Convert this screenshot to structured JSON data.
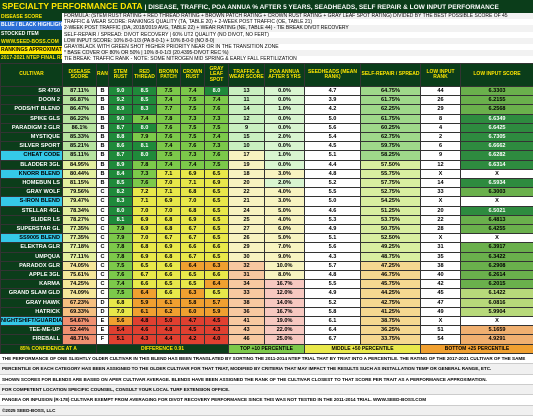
{
  "header": {
    "title": "SPECIALTY PERFORMANCE DATA",
    "subtitle": "| DISEASE, TRAFFIC, POA ANNUA % AFTER 5 YEARS, SEADHEADS, SELF REPAIR & LOW INPUT PERFORMANCE"
  },
  "legend": {
    "left": [
      "DISEASE SCORE",
      "BLUE / BLACK HIGHLIGHT",
      "STOCKED ITEM",
      "WWW.SEED-BOSS.COM",
      "RANKINGS APPROXIMATE",
      "2017-2021 NTEP FINAL REPORT"
    ],
    "lines": [
      "FORMULA: (STEM RUST RATING + RED THREAD RATING + BROWN PATCH RATING + CROWN RUST RATING + GRAY LEAF SPOT RATING) DIVIDED BY THE BEST POSSIBLE SCORE OF 45",
      "TRAFFIC & WEAR SCORE: RANKINGS QUALITY (TA, TABLE 20) + 2-WEEK POST TRAFFIC (OE, TABLE 21)",
      "2-WEEK POST TRAFFIC (DA, 2018/2019 AVG, TABLE 22) + WEAR RATING (NE, TABLE 44) - TIE BREAK DIVOT RECOVERY",
      "SELF-REPAIR / SPREAD: DIVOT RECOVERY | 60% UT2 QUALITY (NO DIVOT, NO FERT)",
      "LOW INPUT SCORE: 10% 8-0-1/3 (PA 8-0-1) + 10% 8-0-0 (NO 8-0)",
      "GRAY/BLACK WITH GREEN SHOT HIGHER PRIORITY NEAR OR IN THE TRANSITION ZONE",
      "* BASE COVER OF 80% OR 50% | 10% 8-0-1/3 (20.4395-DIVOT REC %)",
      "TIE BREAK: TRAFFIC RANK - NOTE: SOME NITROGEN MID SPRING & EARLY FALL FERTILIZATION"
    ],
    "percentiles": [
      "85% CONFIDENCE AT A",
      "DIFFERENCE 0.91",
      "TOP +10 PERCENTILE",
      "MIDDLE +50 PERCENTILE",
      "BOTTOM +25 PERCENTILE"
    ]
  },
  "table": {
    "columns": [
      "CULTIVAR",
      "DISEASE SCORE",
      "RANK",
      "STEM RUST",
      "RED THREAD",
      "BROWN PATCH",
      "CROWN RUST",
      "GRAY LEAF SPOT",
      "TRAFFIC & WEAR SCORE",
      "POA ANNUA AFTER 5 YRS",
      "SEEDHEADS (MEAN RANK)",
      "SELF-REPAIR / SPREAD",
      "LOW INPUT RANK",
      "LOW INPUT SCORE"
    ],
    "highlight_rows": [
      7,
      9,
      12,
      16,
      25
    ],
    "rows": [
      [
        "SR 4750",
        "87.11%",
        "B",
        "9.0",
        "8.5",
        "7.5",
        "7.4",
        "8.0",
        "13",
        "0.0%",
        "4.7",
        "64.75%",
        "44",
        "6.3303"
      ],
      [
        "DOON 2",
        "86.87%",
        "B",
        "9.2",
        "8.5",
        "7.4",
        "7.5",
        "7.4",
        "11",
        "0.0%",
        "3.9",
        "61.75%",
        "26",
        "6.2155"
      ],
      [
        "PODS/HT BLEND",
        "86.47%",
        "B",
        "8.9",
        "8.3",
        "7.7",
        "7.5",
        "7.6",
        "14",
        "1.0%",
        "4.2",
        "62.25%",
        "29",
        "6.2568"
      ],
      [
        "SPIKE GLS",
        "86.22%",
        "B",
        "9.0",
        "7.4",
        "7.8",
        "7.3",
        "7.3",
        "12",
        "0.0%",
        "5.0",
        "61.75%",
        "8",
        "6.6349"
      ],
      [
        "PARADIGM 2 GLR",
        "86.1%",
        "B",
        "8.7",
        "8.0",
        "7.6",
        "7.5",
        "7.5",
        "9",
        "0.0%",
        "5.6",
        "60.25%",
        "4",
        "6.6425"
      ],
      [
        "MYSTIQUE",
        "85.33%",
        "B",
        "8.8",
        "7.9",
        "7.6",
        "7.5",
        "7.4",
        "15",
        "2.0%",
        "5.4",
        "62.75%",
        "2",
        "6.7305"
      ],
      [
        "SILVER SPORT",
        "85.21%",
        "B",
        "8.6",
        "8.1",
        "7.4",
        "7.6",
        "7.3",
        "10",
        "0.0%",
        "4.5",
        "59.75%",
        "6",
        "6.6662"
      ],
      [
        "CHEAT CODE",
        "85.11%",
        "B",
        "8.7",
        "8.0",
        "7.5",
        "7.3",
        "7.6",
        "17",
        "1.0%",
        "5.1",
        "58.25%",
        "9",
        "6.6282"
      ],
      [
        "BLADDER 3GL",
        "84.95%",
        "B",
        "8.9",
        "7.8",
        "7.4",
        "7.4",
        "7.5",
        "19",
        "0.0%",
        "4.4",
        "57.50%",
        "12",
        "6.6314"
      ],
      [
        "KNORR BLEND",
        "80.44%",
        "B",
        "8.4",
        "7.3",
        "7.1",
        "6.9",
        "6.5",
        "18",
        "3.0%",
        "4.8",
        "55.75%",
        "X",
        "X"
      ],
      [
        "HOMEBUN LS",
        "81.15%",
        "B",
        "8.5",
        "7.6",
        "7.0",
        "7.1",
        "6.9",
        "20",
        "2.0%",
        "5.2",
        "57.75%",
        "14",
        "6.5934"
      ],
      [
        "GRAY WOLF",
        "79.56%",
        "C",
        "8.2",
        "7.2",
        "7.1",
        "6.8",
        "6.5",
        "22",
        "4.0%",
        "5.5",
        "52.75%",
        "33",
        "6.3003"
      ],
      [
        "S-IRON BLEND",
        "79.47%",
        "C",
        "8.3",
        "7.1",
        "6.9",
        "7.0",
        "6.5",
        "21",
        "3.0%",
        "5.0",
        "54.25%",
        "X",
        "X"
      ],
      [
        "STELLAR 4GL",
        "78.34%",
        "C",
        "8.0",
        "7.0",
        "7.0",
        "6.8",
        "6.5",
        "24",
        "5.0%",
        "4.6",
        "51.25%",
        "20",
        "6.5021"
      ],
      [
        "SLIDER LS",
        "78.27%",
        "C",
        "8.1",
        "6.9",
        "6.8",
        "6.9",
        "6.5",
        "25",
        "4.0%",
        "5.3",
        "53.75%",
        "22",
        "6.4813"
      ],
      [
        "SUPERSTAR GL",
        "77.35%",
        "C",
        "7.9",
        "6.9",
        "6.8",
        "6.7",
        "6.5",
        "27",
        "6.0%",
        "4.9",
        "50.75%",
        "28",
        "6.4255"
      ],
      [
        "SS9005 BLEND",
        "77.35%",
        "C",
        "7.9",
        "7.0",
        "6.7",
        "6.7",
        "6.5",
        "26",
        "5.0%",
        "5.1",
        "52.50%",
        "X",
        "X"
      ],
      [
        "ELEKTRA GLR",
        "77.18%",
        "C",
        "7.8",
        "6.8",
        "6.9",
        "6.6",
        "6.6",
        "29",
        "7.0%",
        "5.6",
        "49.25%",
        "31",
        "6.3917"
      ],
      [
        "UMPQUA",
        "77.11%",
        "C",
        "7.8",
        "6.9",
        "6.8",
        "6.7",
        "6.5",
        "30",
        "9.0%",
        "4.3",
        "48.75%",
        "35",
        "6.3422"
      ],
      [
        "PARADOX GLR",
        "74.05%",
        "C",
        "7.5",
        "6.5",
        "6.6",
        "6.4",
        "6.3",
        "32",
        "10.0%",
        "5.7",
        "47.25%",
        "38",
        "6.2908"
      ],
      [
        "APPLE 3GL",
        "75.61%",
        "C",
        "7.6",
        "6.7",
        "6.6",
        "6.5",
        "6.6",
        "31",
        "8.0%",
        "4.8",
        "46.75%",
        "40",
        "6.2614"
      ],
      [
        "KARMA",
        "74.25%",
        "C",
        "7.4",
        "6.6",
        "6.5",
        "6.5",
        "6.4",
        "34",
        "16.7%",
        "5.5",
        "45.75%",
        "42",
        "6.2015"
      ],
      [
        "GRAND SLAM GLD",
        "74.09%",
        "C",
        "7.5",
        "6.4",
        "6.6",
        "6.3",
        "6.5",
        "33",
        "12.0%",
        "4.9",
        "44.25%",
        "45",
        "6.1422"
      ],
      [
        "GRAY HAWK",
        "67.23%",
        "D",
        "6.8",
        "5.9",
        "6.1",
        "5.8",
        "5.7",
        "38",
        "14.0%",
        "5.2",
        "42.75%",
        "47",
        "6.0816"
      ],
      [
        "HATRICK",
        "69.33%",
        "D",
        "7.0",
        "6.1",
        "6.2",
        "6.0",
        "5.9",
        "36",
        "16.7%",
        "5.8",
        "41.25%",
        "49",
        "5.9904"
      ],
      [
        "NIGHTSHIFT/GUARDIAN",
        "54.67%",
        "E",
        "5.6",
        "4.8",
        "5.0",
        "4.7",
        "4.5",
        "41",
        "19.0%",
        "6.1",
        "38.75%",
        "X",
        "X"
      ],
      [
        "TEE-ME-UP",
        "52.44%",
        "E",
        "5.4",
        "4.6",
        "4.8",
        "4.5",
        "4.3",
        "43",
        "22.0%",
        "6.4",
        "36.25%",
        "51",
        "5.1659"
      ],
      [
        "FIREBALL",
        "48.71%",
        "F",
        "5.1",
        "4.3",
        "4.4",
        "4.2",
        "4.0",
        "46",
        "25.0%",
        "6.7",
        "33.75%",
        "54",
        "4.9291"
      ]
    ]
  },
  "footer": [
    "THE PERFORMANCE OF ONE SLIGHTLY OLDER CULTIVAR IN THIS BLEND HAS BEEN TRANSLATED BY SORTING THE 2011-2014 NTEP TRIAL THAT BY TRIAT INTO A PERCENTILE. THE RATING OF THE 2017-2021 CULTIVAR OF THE SAME",
    "PERCENTILE OR EACH CATEGORY HAS BEEN ASSIGNED TO THE OLDER CULTIVAR FOR THAT TRIAT, MODIFIED BY CRITERIA THAT MAY IMPACT THE RESULTS SUCH AS INSTALLATION TEMP OR GENERAL RANGE, ETC.",
    "SHOWN SCORES FOR BLENDS ARE BASED ON APER CULTIVAR AVERAGE. BLENDS HAVE BEEN ASSIGNED THE RANK OF THE CULTIVAR CLOSEST TO THAT SCORE PER TRAIT AS A PERFORMANCE APPROXIMATION.",
    "FOR COMPETENT LOCATION SPECIFIC COUNSEL, CONSULT YOUR LOCAL TURF EXTENSION OFFICE.",
    "PANGEA OR INFUSION (R-178) CULTIVAR EXEMPT FROM AVERAGING FOR DIVOT RECOVERY PERFORMANCE SINCE THIS WAS NOT TESTED IN THE 2011-2014 TRIAL. WWW.SEED-BOSS.COM",
    "©2025 SEED-BOSS, LLC"
  ]
}
